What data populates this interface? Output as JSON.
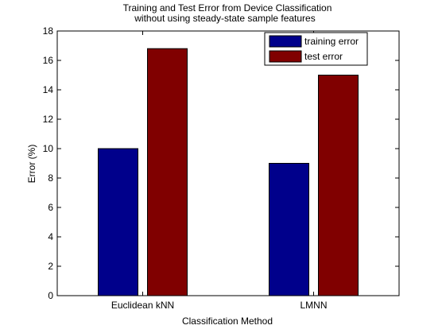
{
  "chart_data": {
    "type": "bar",
    "title": "Training and Test Error from Device Classification",
    "subtitle": "without using steady-state sample features",
    "xlabel": "Classification Method",
    "ylabel": "Error (%)",
    "categories": [
      "Euclidean kNN",
      "LMNN"
    ],
    "series": [
      {
        "name": "training error",
        "color": "#00008B",
        "values": [
          10.0,
          9.0
        ]
      },
      {
        "name": "test error",
        "color": "#800000",
        "values": [
          16.8,
          15.0
        ]
      }
    ],
    "ylim": [
      0,
      18
    ],
    "yticks": [
      0,
      2,
      4,
      6,
      8,
      10,
      12,
      14,
      16,
      18
    ],
    "grid": false,
    "legend_position": "top-right"
  }
}
